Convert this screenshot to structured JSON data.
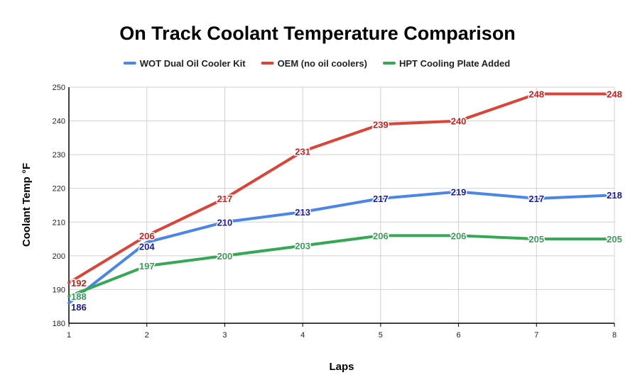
{
  "chart_data": {
    "type": "line",
    "title": "On Track Coolant Temperature Comparison",
    "xlabel": "Laps",
    "ylabel": "Coolant Temp °F",
    "x": [
      1,
      2,
      3,
      4,
      5,
      6,
      7,
      8
    ],
    "xlim": [
      1,
      8
    ],
    "ylim": [
      180,
      250
    ],
    "yticks": [
      180,
      190,
      200,
      210,
      220,
      230,
      240,
      250
    ],
    "grid": true,
    "legend_position": "top",
    "series": [
      {
        "name": "WOT Dual Oil Cooler Kit",
        "color": "#4a86e8",
        "label_color": "#1a1aa8",
        "values": [
          186,
          204,
          210,
          213,
          217,
          219,
          217,
          218
        ]
      },
      {
        "name": "OEM (no oil coolers)",
        "color": "#db4437",
        "label_color": "#c5221f",
        "values": [
          192,
          206,
          217,
          231,
          239,
          240,
          248,
          248
        ]
      },
      {
        "name": "HPT Cooling Plate Added",
        "color": "#34a853",
        "label_color": "#3d9a5c",
        "values": [
          188,
          197,
          200,
          203,
          206,
          206,
          205,
          205
        ]
      }
    ]
  }
}
